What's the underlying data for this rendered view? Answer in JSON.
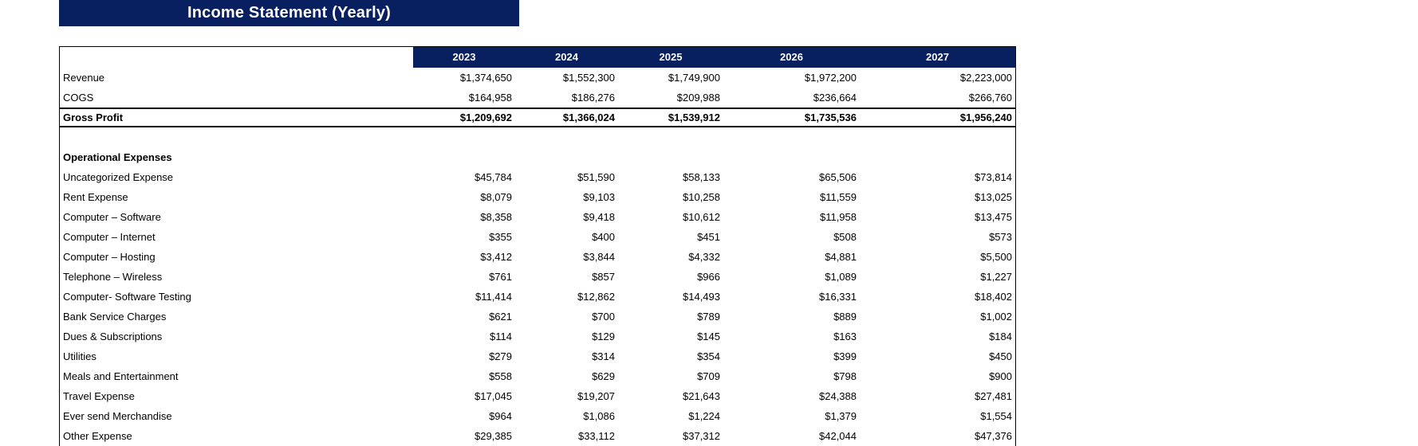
{
  "title": "Income Statement (Yearly)",
  "colors": {
    "header_navy": "#082060",
    "text": "#000000",
    "background": "#ffffff"
  },
  "table": {
    "years": [
      "2023",
      "2024",
      "2025",
      "2026",
      "2027"
    ],
    "rows": [
      {
        "label": "Revenue",
        "style": "normal",
        "values": [
          "$1,374,650",
          "$1,552,300",
          "$1,749,900",
          "$1,972,200",
          "$2,223,000"
        ]
      },
      {
        "label": "COGS",
        "style": "normal",
        "values": [
          "$164,958",
          "$186,276",
          "$209,988",
          "$236,664",
          "$266,760"
        ]
      },
      {
        "label": "Gross Profit",
        "style": "total",
        "values": [
          "$1,209,692",
          "$1,366,024",
          "$1,539,912",
          "$1,735,536",
          "$1,956,240"
        ]
      },
      {
        "label": "",
        "style": "blank",
        "values": [
          "",
          "",
          "",
          "",
          ""
        ]
      },
      {
        "label": "Operational Expenses",
        "style": "section",
        "values": [
          "",
          "",
          "",
          "",
          ""
        ]
      },
      {
        "label": "Uncategorized Expense",
        "style": "normal",
        "values": [
          "$45,784",
          "$51,590",
          "$58,133",
          "$65,506",
          "$73,814"
        ]
      },
      {
        "label": "Rent Expense",
        "style": "normal",
        "values": [
          "$8,079",
          "$9,103",
          "$10,258",
          "$11,559",
          "$13,025"
        ]
      },
      {
        "label": "Computer – Software",
        "style": "normal",
        "values": [
          "$8,358",
          "$9,418",
          "$10,612",
          "$11,958",
          "$13,475"
        ]
      },
      {
        "label": "Computer – Internet",
        "style": "normal",
        "values": [
          "$355",
          "$400",
          "$451",
          "$508",
          "$573"
        ]
      },
      {
        "label": "Computer – Hosting",
        "style": "normal",
        "values": [
          "$3,412",
          "$3,844",
          "$4,332",
          "$4,881",
          "$5,500"
        ]
      },
      {
        "label": "Telephone – Wireless",
        "style": "normal",
        "values": [
          "$761",
          "$857",
          "$966",
          "$1,089",
          "$1,227"
        ]
      },
      {
        "label": "Computer- Software Testing",
        "style": "normal",
        "values": [
          "$11,414",
          "$12,862",
          "$14,493",
          "$16,331",
          "$18,402"
        ]
      },
      {
        "label": "Bank Service Charges",
        "style": "normal",
        "values": [
          "$621",
          "$700",
          "$789",
          "$889",
          "$1,002"
        ]
      },
      {
        "label": "Dues & Subscriptions",
        "style": "normal",
        "values": [
          "$114",
          "$129",
          "$145",
          "$163",
          "$184"
        ]
      },
      {
        "label": "Utilities",
        "style": "normal",
        "values": [
          "$279",
          "$314",
          "$354",
          "$399",
          "$450"
        ]
      },
      {
        "label": "Meals and Entertainment",
        "style": "normal",
        "values": [
          "$558",
          "$629",
          "$709",
          "$798",
          "$900"
        ]
      },
      {
        "label": "Travel Expense",
        "style": "normal",
        "values": [
          "$17,045",
          "$19,207",
          "$21,643",
          "$24,388",
          "$27,481"
        ]
      },
      {
        "label": "Ever send Merchandise",
        "style": "normal",
        "values": [
          "$964",
          "$1,086",
          "$1,224",
          "$1,379",
          "$1,554"
        ]
      },
      {
        "label": "Other Expense",
        "style": "normal",
        "values": [
          "$29,385",
          "$33,112",
          "$37,312",
          "$42,044",
          "$47,376"
        ]
      }
    ]
  }
}
